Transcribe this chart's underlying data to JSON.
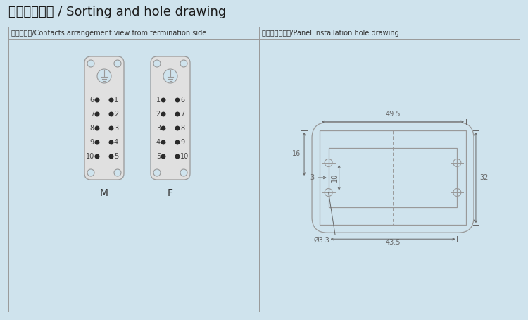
{
  "title_cn": "排序及开孔图",
  "title_en": " / Sorting and hole drawing",
  "bg_color": "#cfe3ed",
  "panel_bg": "#cfe3ed",
  "header_left_cn": "接插件排序",
  "header_left_en": "/Contacts arrangement view from termination side",
  "header_right_cn": "面板安装开孔图",
  "header_right_en": "/Panel installation hole drawing",
  "line_color": "#999999",
  "dim_color": "#666666",
  "dot_color": "#2a2a2a",
  "connector_fill": "#e0e0e0",
  "hole_fill": "#cfe3ed",
  "M_label": "M",
  "F_label": "F",
  "m_left_pins": [
    "6",
    "7",
    "8",
    "9",
    "10"
  ],
  "m_right_pins": [
    "1",
    "2",
    "3",
    "4",
    "5"
  ],
  "f_left_pins": [
    "1",
    "2",
    "3",
    "4",
    "5"
  ],
  "f_right_pins": [
    "6",
    "7",
    "8",
    "9",
    "10"
  ],
  "dim_49_5": "49.5",
  "dim_43_5": "43.5",
  "dim_32": "32",
  "dim_16": "16",
  "dim_3": "3",
  "dim_10": "10",
  "dim_3_3": "Ø3.3",
  "title_fontsize": 13,
  "header_fontsize": 7,
  "label_fontsize": 8,
  "pin_fontsize": 7,
  "dim_fontsize": 7
}
